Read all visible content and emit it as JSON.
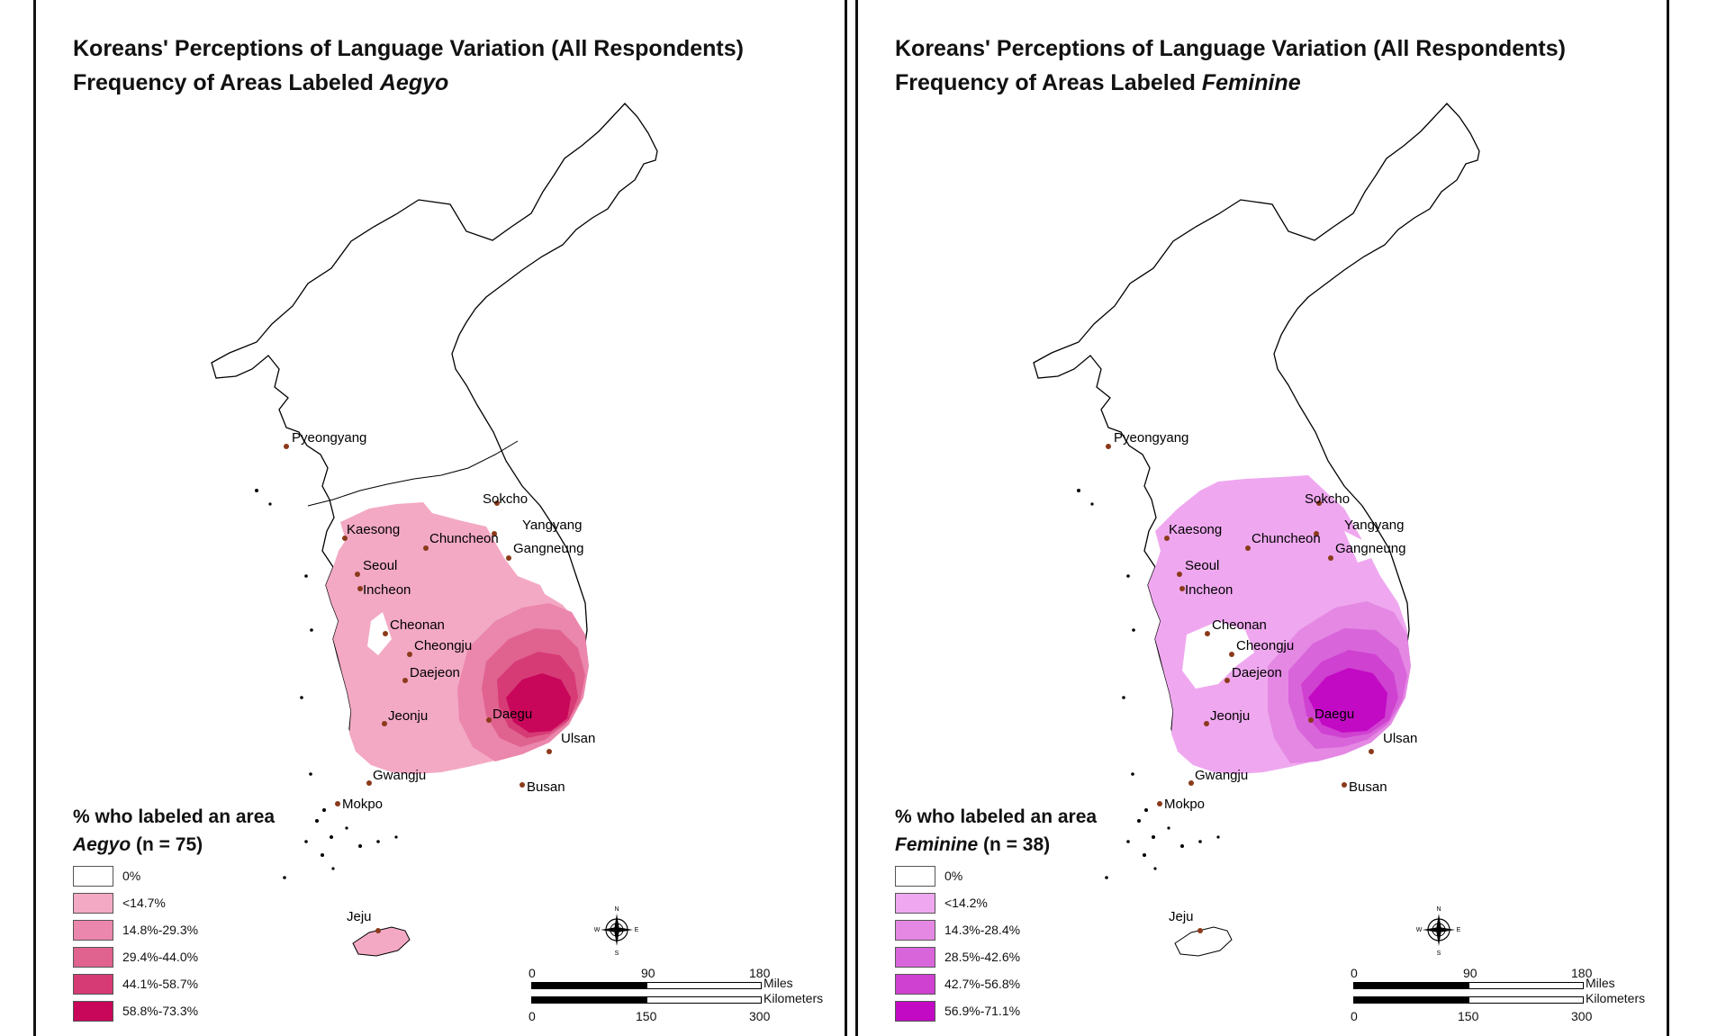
{
  "panels": [
    {
      "title_line1": "Koreans' Perceptions of Language Variation (All Respondents)",
      "title_line2_prefix": "Frequency of Areas Labeled ",
      "title_line2_term": "Aegyo",
      "legend_title_line1": "% who labeled an area",
      "legend_term": "Aegyo",
      "legend_n": " (n = 75)",
      "legend": [
        {
          "label": "0%",
          "color": "#ffffff"
        },
        {
          "label": "<14.7%",
          "color": "#f3a9c4"
        },
        {
          "label": "14.8%-29.3%",
          "color": "#eb86ac"
        },
        {
          "label": "29.4%-44.0%",
          "color": "#e0628f"
        },
        {
          "label": "44.1%-58.7%",
          "color": "#d63b75"
        },
        {
          "label": "58.8%-73.3%",
          "color": "#c8065a"
        }
      ]
    },
    {
      "title_line1": "Koreans' Perceptions of Language Variation (All Respondents)",
      "title_line2_prefix": "Frequency of Areas Labeled ",
      "title_line2_term": "Feminine",
      "legend_title_line1": "% who labeled an area",
      "legend_term": "Feminine",
      "legend_n": " (n = 38)",
      "legend": [
        {
          "label": "0%",
          "color": "#ffffff"
        },
        {
          "label": "<14.2%",
          "color": "#efa8ef"
        },
        {
          "label": "14.3%-28.4%",
          "color": "#e488e4"
        },
        {
          "label": "28.5%-42.6%",
          "color": "#d965da"
        },
        {
          "label": "42.7%-56.8%",
          "color": "#cf41d0"
        },
        {
          "label": "56.9%-71.1%",
          "color": "#c20ac4"
        }
      ]
    }
  ],
  "cities": {
    "pyeongyang": "Pyeongyang",
    "sokcho": "Sokcho",
    "yangyang": "Yangyang",
    "kaesong": "Kaesong",
    "chuncheon": "Chuncheon",
    "gangneung": "Gangneung",
    "seoul": "Seoul",
    "incheon": "Incheon",
    "cheonan": "Cheonan",
    "cheongju": "Cheongju",
    "daejeon": "Daejeon",
    "daegu": "Daegu",
    "jeonju": "Jeonju",
    "ulsan": "Ulsan",
    "gwangju": "Gwangju",
    "busan": "Busan",
    "mokpo": "Mokpo",
    "jeju": "Jeju"
  },
  "scale": {
    "mi_0": "0",
    "mi_90": "90",
    "mi_180": "180",
    "miles": "Miles",
    "km_0": "0",
    "km_150": "150",
    "km_300": "300",
    "kilometers": "Kilometers"
  },
  "compass": {
    "n": "N",
    "s": "S",
    "e": "E",
    "w": "W"
  }
}
